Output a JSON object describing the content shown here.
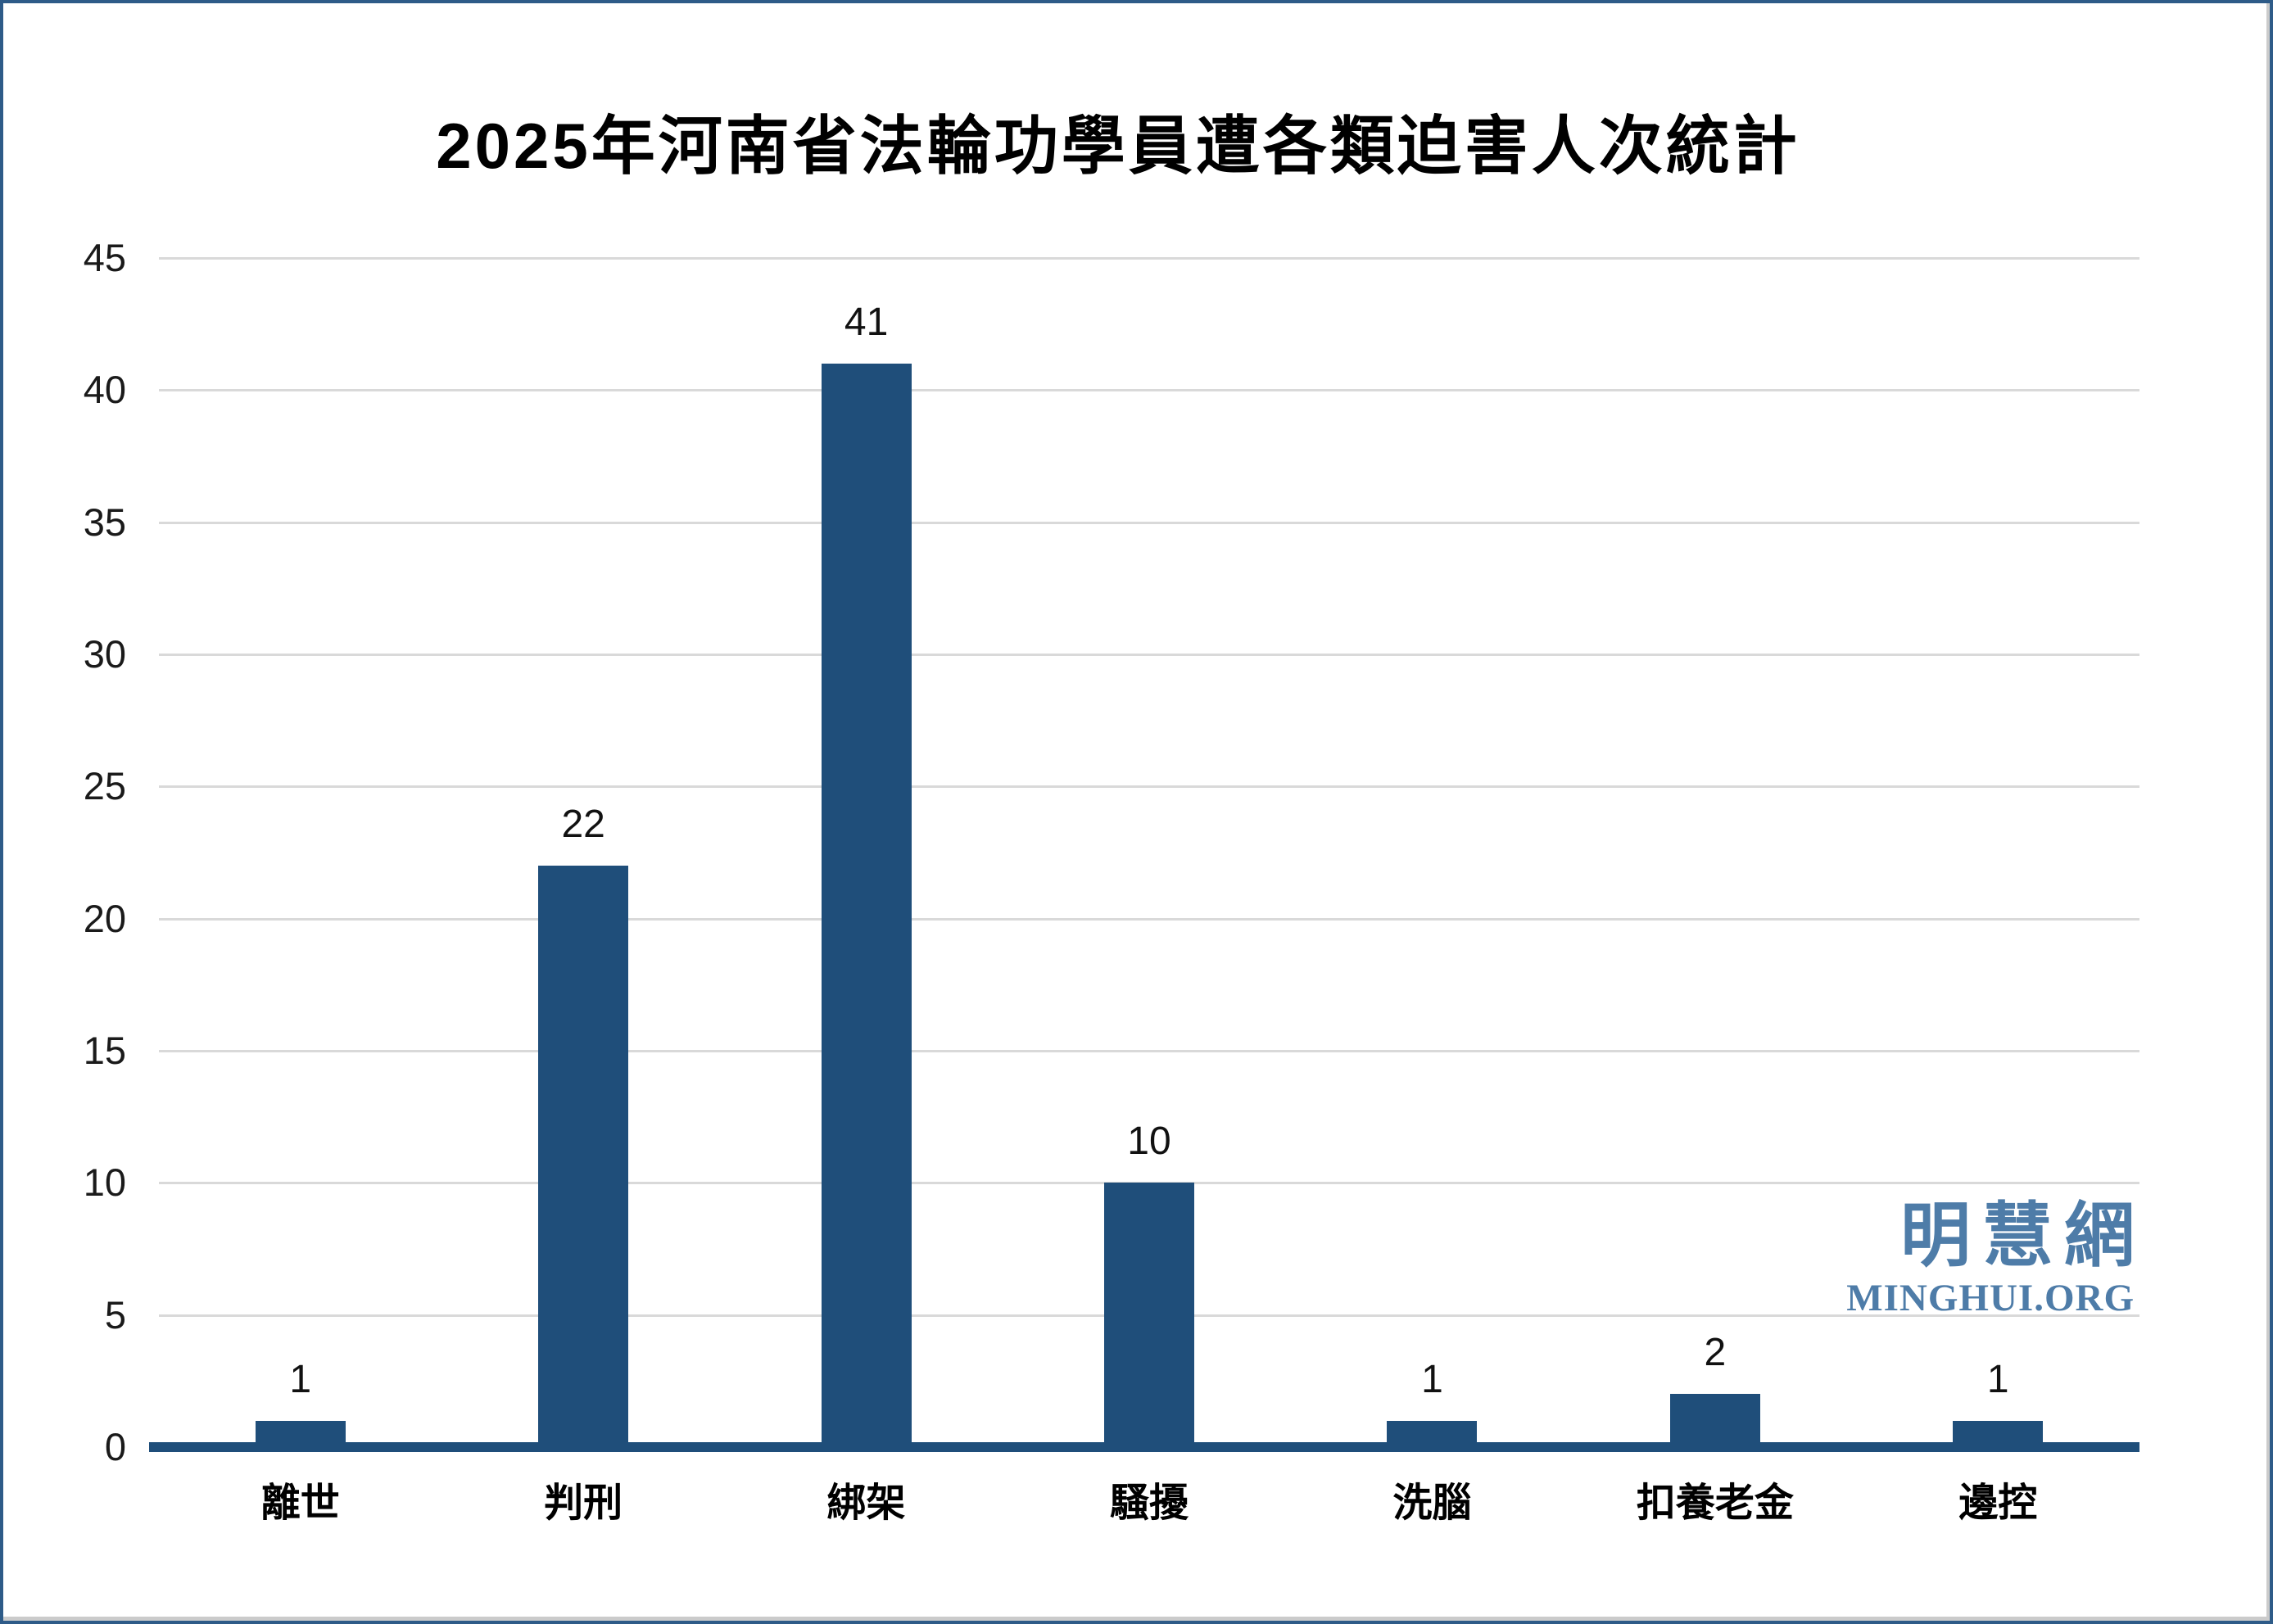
{
  "title": "2025年河南省法輪功學員遭各類迫害人次統計",
  "watermark": {
    "cjk": "明慧網",
    "latin": "MINGHUI.ORG",
    "color": "#4E7CA8"
  },
  "colors": {
    "bar": "#1F4E7A",
    "axis_line": "#1F4E7A",
    "gridline": "#D9D9D9",
    "frame_border": "#2E5B88",
    "tick_text": "#1a1a1a"
  },
  "chart_data": {
    "type": "bar",
    "title": "2025年河南省法輪功學員遭各類迫害人次統計",
    "categories": [
      "離世",
      "判刑",
      "綁架",
      "騷擾",
      "洗腦",
      "扣養老金",
      "邊控"
    ],
    "values": [
      1,
      22,
      41,
      10,
      1,
      2,
      1
    ],
    "value_labels": [
      "1",
      "22",
      "41",
      "10",
      "1",
      "2",
      "1"
    ],
    "xlabel": "",
    "ylabel": "",
    "ylim": [
      0,
      45
    ],
    "ytick_step": 5,
    "yticks": [
      0,
      5,
      10,
      15,
      20,
      25,
      30,
      35,
      40,
      45
    ],
    "grid": true,
    "legend": false,
    "series_color": "#1F4E7A"
  }
}
